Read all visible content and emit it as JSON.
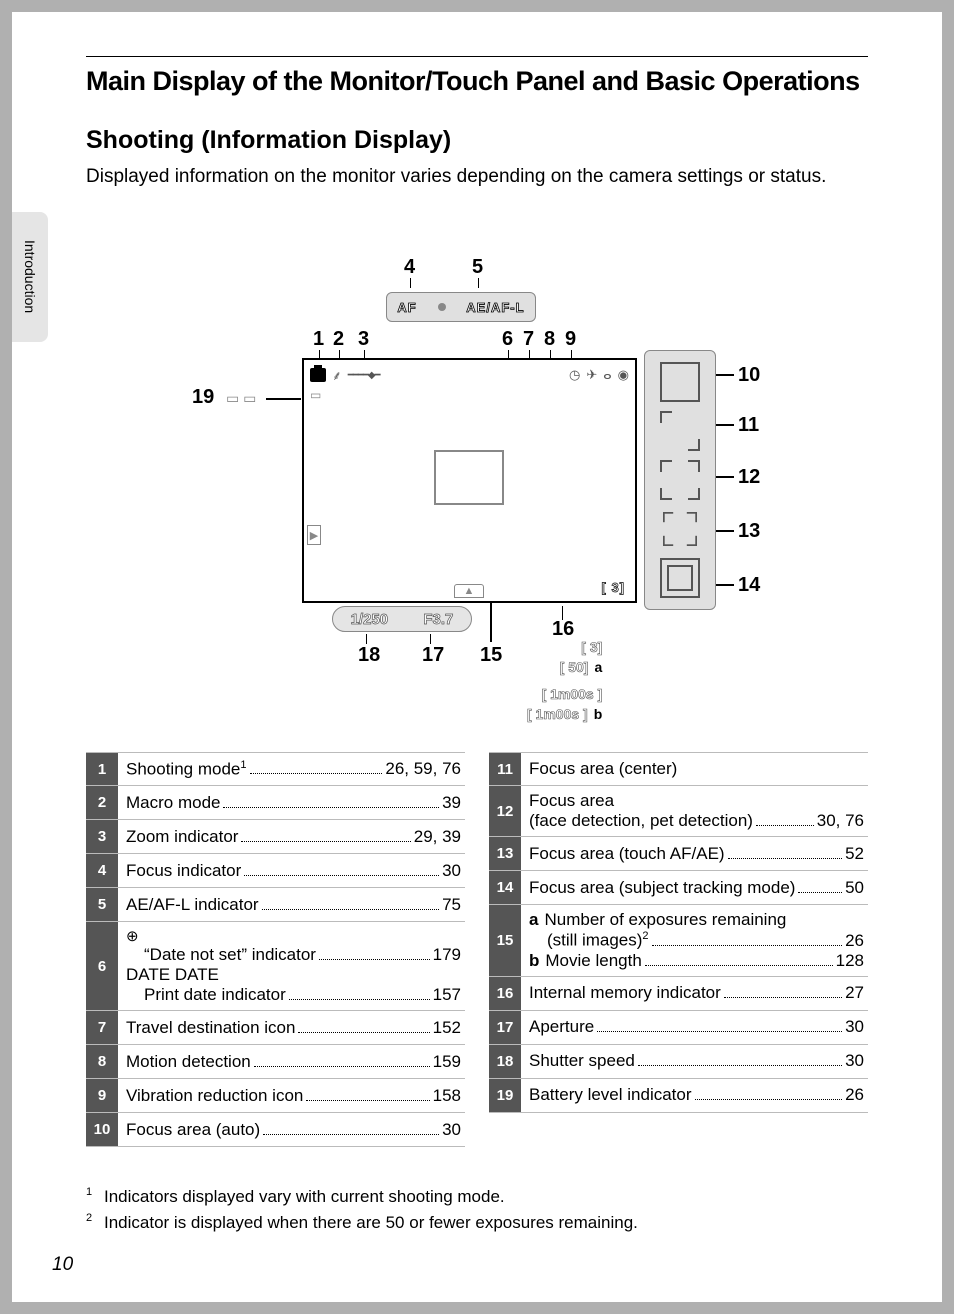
{
  "page_number": "10",
  "side_tab": "Introduction",
  "main_title": "Main Display of the Monitor/Touch Panel and Basic Operations",
  "sub_title": "Shooting (Information Display)",
  "intro_text": "Displayed information on the monitor varies depending on the camera settings or status.",
  "diagram": {
    "top_labels": {
      "n1": "1",
      "n2": "2",
      "n3": "3",
      "n4": "4",
      "n5": "5",
      "n6": "6",
      "n7": "7",
      "n8": "8",
      "n9": "9",
      "n19": "19"
    },
    "side_labels": {
      "n10": "10",
      "n11": "11",
      "n12": "12",
      "n13": "13",
      "n14": "14"
    },
    "bottom_labels": {
      "n15": "15",
      "n16": "16",
      "n17": "17",
      "n18": "18"
    },
    "tab_af": "AF",
    "tab_aeafl": "AE/AF-L",
    "shutter": "1/250",
    "aperture": "F3.7",
    "mem_indicator": "[   3]",
    "readout_a1": "[   3]",
    "readout_a2": "[  50]",
    "readout_b1": "[ 1m00s ]",
    "readout_b2": "[ 1m00s ]",
    "letter_a": "a",
    "letter_b": "b"
  },
  "left_items": [
    {
      "num": "1",
      "lines": [
        {
          "label": "Shooting mode",
          "sup": "1",
          "page": "26, 59, 76"
        }
      ]
    },
    {
      "num": "2",
      "lines": [
        {
          "label": "Macro mode",
          "page": "39"
        }
      ]
    },
    {
      "num": "3",
      "lines": [
        {
          "label": "Zoom indicator",
          "page": "29, 39"
        }
      ]
    },
    {
      "num": "4",
      "lines": [
        {
          "label": "Focus indicator",
          "page": "30"
        }
      ]
    },
    {
      "num": "5",
      "lines": [
        {
          "label": "AE/AF-L indicator",
          "page": "75"
        }
      ]
    },
    {
      "num": "6",
      "lines": [
        {
          "pretext": "⊕",
          "label": "“Date not set” indicator",
          "page": "179",
          "indent": true
        },
        {
          "pretext": "DATE DATE",
          "label": "Print date indicator",
          "page": "157",
          "indent": true,
          "dateicon": true
        }
      ]
    },
    {
      "num": "7",
      "lines": [
        {
          "label": "Travel destination icon",
          "page": "152"
        }
      ]
    },
    {
      "num": "8",
      "lines": [
        {
          "label": "Motion detection",
          "page": "159"
        }
      ]
    },
    {
      "num": "9",
      "lines": [
        {
          "label": "Vibration reduction icon",
          "page": "158"
        }
      ]
    },
    {
      "num": "10",
      "lines": [
        {
          "label": "Focus area (auto)",
          "page": "30"
        }
      ]
    }
  ],
  "right_items": [
    {
      "num": "11",
      "lines": [
        {
          "label": "Focus area (center)",
          "page": ""
        }
      ]
    },
    {
      "num": "12",
      "lines": [
        {
          "label": "Focus area",
          "page": ""
        },
        {
          "label": "(face detection, pet detection)",
          "page": "30, 76"
        }
      ]
    },
    {
      "num": "13",
      "lines": [
        {
          "label": "Focus area (touch AF/AE)",
          "page": "52"
        }
      ]
    },
    {
      "num": "14",
      "lines": [
        {
          "label": "Focus area (subject tracking mode)",
          "page": "50"
        }
      ]
    },
    {
      "num": "15",
      "lines": [
        {
          "sub": "a",
          "label": "Number of exposures remaining",
          "page": ""
        },
        {
          "label": "(still images)",
          "sup": "2",
          "page": "26",
          "indent": true
        },
        {
          "sub": "b",
          "label": "Movie length",
          "page": "128"
        }
      ]
    },
    {
      "num": "16",
      "lines": [
        {
          "label": "Internal memory indicator",
          "page": "27"
        }
      ]
    },
    {
      "num": "17",
      "lines": [
        {
          "label": "Aperture",
          "page": "30"
        }
      ]
    },
    {
      "num": "18",
      "lines": [
        {
          "label": "Shutter speed",
          "page": "30"
        }
      ]
    },
    {
      "num": "19",
      "lines": [
        {
          "label": "Battery level indicator",
          "page": "26"
        }
      ]
    }
  ],
  "footnotes": {
    "f1": "Indicators displayed vary with current shooting mode.",
    "f2": "Indicator is displayed when there are 50 or fewer exposures remaining."
  }
}
